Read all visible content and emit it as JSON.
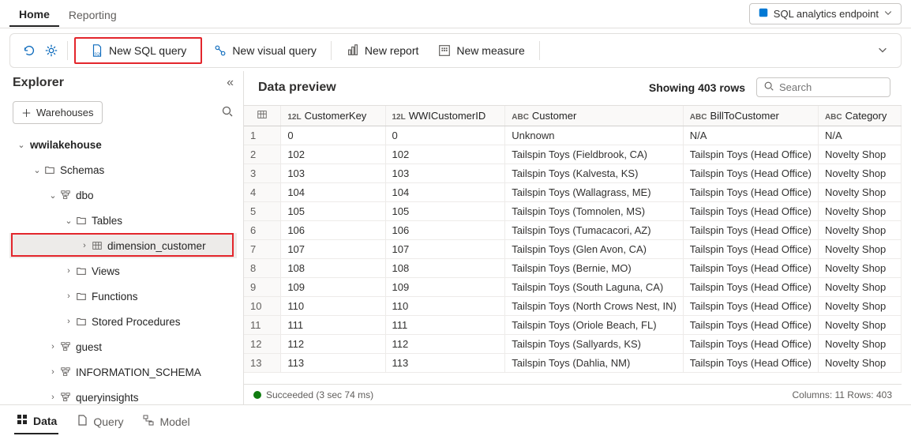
{
  "colors": {
    "highlight_border": "#e3262c",
    "accent": "#0f6cbd"
  },
  "top_tabs": {
    "home": "Home",
    "reporting": "Reporting"
  },
  "endpoint": {
    "label": "SQL analytics endpoint"
  },
  "toolbar": {
    "new_sql_query": "New SQL query",
    "new_visual_query": "New visual query",
    "new_report": "New report",
    "new_measure": "New measure"
  },
  "explorer": {
    "title": "Explorer",
    "warehouses_btn": "Warehouses",
    "tree": {
      "db": "wwilakehouse",
      "schemas": "Schemas",
      "dbo": "dbo",
      "tables": "Tables",
      "table": "dimension_customer",
      "views": "Views",
      "functions": "Functions",
      "sprocs": "Stored Procedures",
      "guest": "guest",
      "info_schema": "INFORMATION_SCHEMA",
      "queryinsights": "queryinsights"
    }
  },
  "preview": {
    "title": "Data preview",
    "showing": "Showing 403 rows",
    "search_placeholder": "Search",
    "columns": [
      {
        "type": "12L",
        "name": "CustomerKey"
      },
      {
        "type": "12L",
        "name": "WWICustomerID"
      },
      {
        "type": "ABC",
        "name": "Customer"
      },
      {
        "type": "ABC",
        "name": "BillToCustomer"
      },
      {
        "type": "ABC",
        "name": "Category"
      }
    ],
    "rows": [
      {
        "n": "1",
        "ck": "0",
        "wid": "0",
        "cust": "Unknown",
        "bill": "N/A",
        "cat": "N/A"
      },
      {
        "n": "2",
        "ck": "102",
        "wid": "102",
        "cust": "Tailspin Toys (Fieldbrook, CA)",
        "bill": "Tailspin Toys (Head Office)",
        "cat": "Novelty Shop"
      },
      {
        "n": "3",
        "ck": "103",
        "wid": "103",
        "cust": "Tailspin Toys (Kalvesta, KS)",
        "bill": "Tailspin Toys (Head Office)",
        "cat": "Novelty Shop"
      },
      {
        "n": "4",
        "ck": "104",
        "wid": "104",
        "cust": "Tailspin Toys (Wallagrass, ME)",
        "bill": "Tailspin Toys (Head Office)",
        "cat": "Novelty Shop"
      },
      {
        "n": "5",
        "ck": "105",
        "wid": "105",
        "cust": "Tailspin Toys (Tomnolen, MS)",
        "bill": "Tailspin Toys (Head Office)",
        "cat": "Novelty Shop"
      },
      {
        "n": "6",
        "ck": "106",
        "wid": "106",
        "cust": "Tailspin Toys (Tumacacori, AZ)",
        "bill": "Tailspin Toys (Head Office)",
        "cat": "Novelty Shop"
      },
      {
        "n": "7",
        "ck": "107",
        "wid": "107",
        "cust": "Tailspin Toys (Glen Avon, CA)",
        "bill": "Tailspin Toys (Head Office)",
        "cat": "Novelty Shop"
      },
      {
        "n": "8",
        "ck": "108",
        "wid": "108",
        "cust": "Tailspin Toys (Bernie, MO)",
        "bill": "Tailspin Toys (Head Office)",
        "cat": "Novelty Shop"
      },
      {
        "n": "9",
        "ck": "109",
        "wid": "109",
        "cust": "Tailspin Toys (South Laguna, CA)",
        "bill": "Tailspin Toys (Head Office)",
        "cat": "Novelty Shop"
      },
      {
        "n": "10",
        "ck": "110",
        "wid": "110",
        "cust": "Tailspin Toys (North Crows Nest, IN)",
        "bill": "Tailspin Toys (Head Office)",
        "cat": "Novelty Shop"
      },
      {
        "n": "11",
        "ck": "111",
        "wid": "111",
        "cust": "Tailspin Toys (Oriole Beach, FL)",
        "bill": "Tailspin Toys (Head Office)",
        "cat": "Novelty Shop"
      },
      {
        "n": "12",
        "ck": "112",
        "wid": "112",
        "cust": "Tailspin Toys (Sallyards, KS)",
        "bill": "Tailspin Toys (Head Office)",
        "cat": "Novelty Shop"
      },
      {
        "n": "13",
        "ck": "113",
        "wid": "113",
        "cust": "Tailspin Toys (Dahlia, NM)",
        "bill": "Tailspin Toys (Head Office)",
        "cat": "Novelty Shop"
      }
    ],
    "status": {
      "text": "Succeeded (3 sec 74 ms)",
      "right": "Columns: 11 Rows: 403"
    }
  },
  "bottom_tabs": {
    "data": "Data",
    "query": "Query",
    "model": "Model"
  }
}
